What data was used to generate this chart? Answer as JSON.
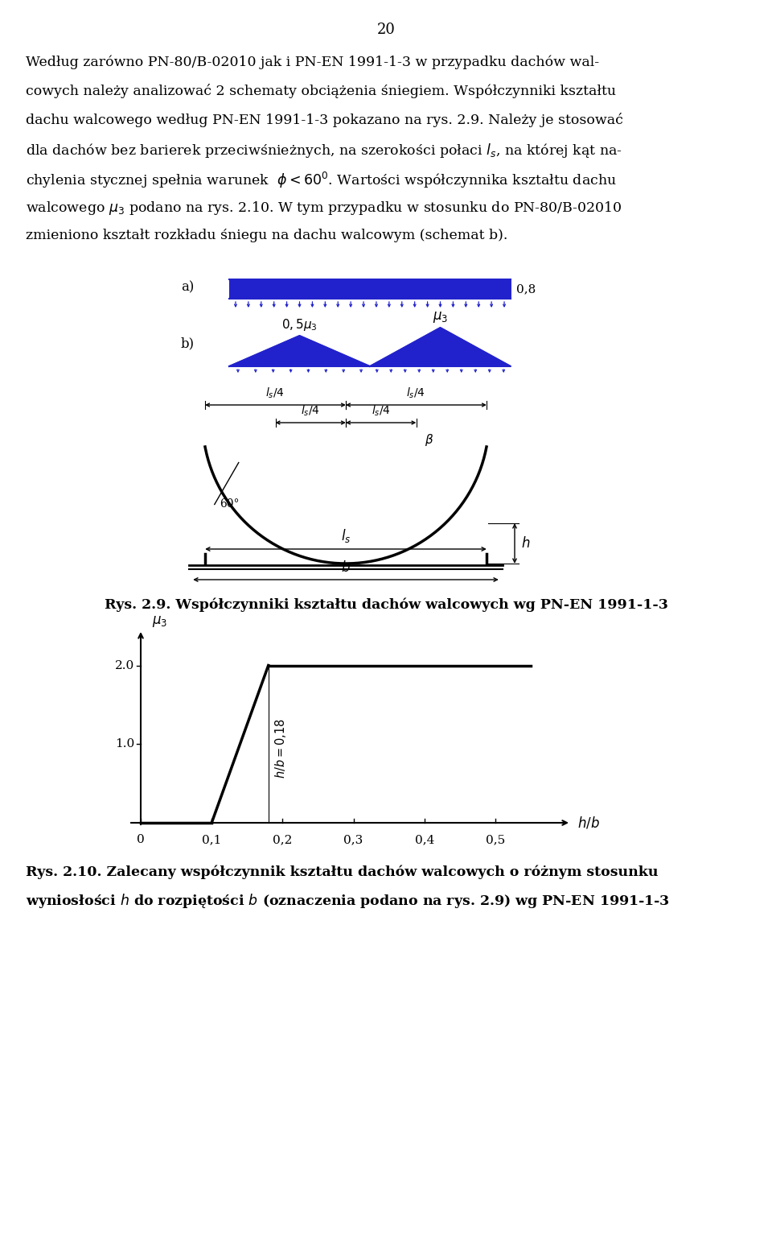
{
  "page_number": "20",
  "blue_color": "#2222CC",
  "black_color": "#000000",
  "caption_29": "Rys. 2.9. Współczynniki kształtu dachów walcowych wg PN-EN 1991-1-3",
  "caption_210_1": "Rys. 2.10. Zalecany współczynnik kształtu dachów walcowych o różnym stosunku",
  "caption_210_2": "wyniosłości $h$ do rozpiętości $b$ (oznaczenia podano na rys. 2.9) wg PN-EN 1991-1-3",
  "body_lines": [
    "Według zarówno PN-80/B-02010 jak i PN-EN 1991-1-3 w przypadku dachów wal-",
    "cowych należy analizować 2 schematy obciążenia śniegiem. Współczynniki kształtu",
    "dachu walcowego według PN-EN 1991-1-3 pokazano na rys. 2.9. Należy je stosować",
    "dla dachów bez barierek przeciwśnieżnych, na szerokości połaci $l_s$, na której kąt na-",
    "chylenia stycznej spełnia warunek  $\\phi < 60^0$. Wartości współczynnika kształtu dachu",
    "walcowego $\\mu_3$ podano na rys. 2.10. W tym przypadku w stosunku do PN-80/B-02010",
    "zmieniono kształt rozkładu śniegu na dachu walcowym (schemat b)."
  ]
}
